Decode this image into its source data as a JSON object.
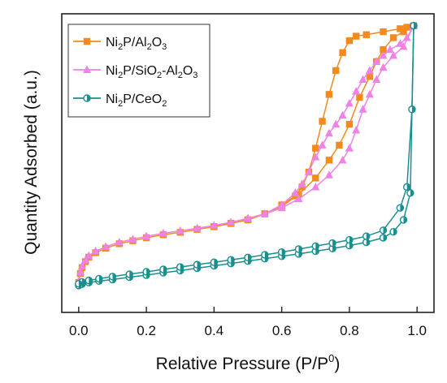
{
  "chart_data": {
    "type": "line",
    "title": "",
    "xlabel": "Relative Pressure (P/P0)",
    "ylabel": "Quantity Adsorbed (a.u.)",
    "xlim": [
      -0.05,
      1.05
    ],
    "ylim": [
      0,
      100
    ],
    "xticks": [
      "0.0",
      "0.2",
      "0.4",
      "0.6",
      "0.8",
      "1.0"
    ],
    "xtick_values": [
      0.0,
      0.2,
      0.4,
      0.6,
      0.8,
      1.0
    ],
    "show_y_ticks": false,
    "grid": false,
    "legend_position": "top-left",
    "series": [
      {
        "name": "Ni2P/Al2O3",
        "legend_parts": [
          [
            "Ni",
            false
          ],
          [
            "2",
            true
          ],
          [
            "P/Al",
            false
          ],
          [
            "2",
            true
          ],
          [
            "O",
            false
          ],
          [
            "3",
            true
          ]
        ],
        "color": "#f28a1d",
        "marker": "square",
        "adsorption": [
          [
            0.0,
            10
          ],
          [
            0.005,
            13
          ],
          [
            0.01,
            15
          ],
          [
            0.02,
            17
          ],
          [
            0.03,
            18.5
          ],
          [
            0.05,
            20
          ],
          [
            0.08,
            21.5
          ],
          [
            0.12,
            23
          ],
          [
            0.16,
            24
          ],
          [
            0.2,
            25
          ],
          [
            0.25,
            26
          ],
          [
            0.3,
            26.8
          ],
          [
            0.35,
            27.8
          ],
          [
            0.4,
            28.7
          ],
          [
            0.45,
            29.8
          ],
          [
            0.5,
            31
          ],
          [
            0.55,
            33
          ],
          [
            0.6,
            35.5
          ],
          [
            0.65,
            39.5
          ],
          [
            0.7,
            45
          ],
          [
            0.74,
            51
          ],
          [
            0.77,
            56
          ],
          [
            0.8,
            63
          ],
          [
            0.83,
            72
          ],
          [
            0.86,
            79
          ],
          [
            0.88,
            84
          ],
          [
            0.9,
            88
          ],
          [
            0.93,
            92
          ],
          [
            0.96,
            94
          ],
          [
            0.99,
            96
          ]
        ],
        "desorption": [
          [
            0.99,
            96
          ],
          [
            0.97,
            95.5
          ],
          [
            0.95,
            95
          ],
          [
            0.9,
            94
          ],
          [
            0.85,
            93
          ],
          [
            0.82,
            92.5
          ],
          [
            0.8,
            91
          ],
          [
            0.78,
            87
          ],
          [
            0.76,
            81
          ],
          [
            0.74,
            73
          ],
          [
            0.72,
            64
          ],
          [
            0.7,
            55
          ],
          [
            0.68,
            47
          ],
          [
            0.66,
            42
          ],
          [
            0.64,
            39
          ],
          [
            0.6,
            36
          ],
          [
            0.55,
            33
          ],
          [
            0.5,
            31
          ],
          [
            0.45,
            29.8
          ],
          [
            0.4,
            28.7
          ]
        ]
      },
      {
        "name": "Ni2P/SiO2-Al2O3",
        "legend_parts": [
          [
            "Ni",
            false
          ],
          [
            "2",
            true
          ],
          [
            "P/SiO",
            false
          ],
          [
            "2",
            true
          ],
          [
            "-Al",
            false
          ],
          [
            "2",
            true
          ],
          [
            "O",
            false
          ],
          [
            "3",
            true
          ]
        ],
        "color": "#ef82e6",
        "marker": "triangle",
        "adsorption": [
          [
            0.0,
            10.5
          ],
          [
            0.005,
            13.5
          ],
          [
            0.01,
            15.5
          ],
          [
            0.02,
            17.5
          ],
          [
            0.03,
            19
          ],
          [
            0.05,
            20.5
          ],
          [
            0.08,
            22
          ],
          [
            0.12,
            23.5
          ],
          [
            0.16,
            24.5
          ],
          [
            0.2,
            25.5
          ],
          [
            0.25,
            26.5
          ],
          [
            0.3,
            27.3
          ],
          [
            0.35,
            28.2
          ],
          [
            0.4,
            29.1
          ],
          [
            0.45,
            30.2
          ],
          [
            0.5,
            31.5
          ],
          [
            0.55,
            33
          ],
          [
            0.6,
            35
          ],
          [
            0.65,
            38
          ],
          [
            0.7,
            42
          ],
          [
            0.74,
            46
          ],
          [
            0.78,
            51
          ],
          [
            0.8,
            55
          ],
          [
            0.82,
            61
          ],
          [
            0.84,
            68
          ],
          [
            0.86,
            73
          ],
          [
            0.88,
            78
          ],
          [
            0.9,
            82
          ],
          [
            0.93,
            86
          ],
          [
            0.96,
            89
          ],
          [
            0.99,
            96
          ]
        ],
        "desorption": [
          [
            0.99,
            96
          ],
          [
            0.97,
            92
          ],
          [
            0.95,
            90
          ],
          [
            0.92,
            88
          ],
          [
            0.9,
            86
          ],
          [
            0.88,
            84
          ],
          [
            0.86,
            81
          ],
          [
            0.84,
            78
          ],
          [
            0.82,
            74
          ],
          [
            0.8,
            70
          ],
          [
            0.78,
            66
          ],
          [
            0.76,
            63
          ],
          [
            0.74,
            60
          ],
          [
            0.72,
            56
          ],
          [
            0.7,
            52
          ],
          [
            0.68,
            47
          ],
          [
            0.66,
            43
          ],
          [
            0.64,
            40
          ],
          [
            0.6,
            36
          ],
          [
            0.55,
            33
          ],
          [
            0.5,
            31.5
          ]
        ]
      },
      {
        "name": "Ni2P/CeO2",
        "legend_parts": [
          [
            "Ni",
            false
          ],
          [
            "2",
            true
          ],
          [
            "P/CeO",
            false
          ],
          [
            "2",
            true
          ]
        ],
        "color": "#1a8f8f",
        "marker": "half-circle",
        "adsorption": [
          [
            0.0,
            9
          ],
          [
            0.01,
            9.5
          ],
          [
            0.03,
            10
          ],
          [
            0.06,
            10.5
          ],
          [
            0.1,
            11
          ],
          [
            0.15,
            11.8
          ],
          [
            0.2,
            12.5
          ],
          [
            0.25,
            13.3
          ],
          [
            0.3,
            14
          ],
          [
            0.35,
            14.8
          ],
          [
            0.4,
            15.6
          ],
          [
            0.45,
            16.4
          ],
          [
            0.5,
            17.2
          ],
          [
            0.55,
            18
          ],
          [
            0.6,
            18.8
          ],
          [
            0.65,
            19.6
          ],
          [
            0.7,
            20.5
          ],
          [
            0.75,
            21.4
          ],
          [
            0.8,
            22.4
          ],
          [
            0.85,
            23.5
          ],
          [
            0.9,
            25
          ],
          [
            0.93,
            27
          ],
          [
            0.96,
            31
          ],
          [
            0.98,
            40
          ],
          [
            0.99,
            96
          ]
        ],
        "desorption": [
          [
            0.99,
            96
          ],
          [
            0.985,
            68
          ],
          [
            0.97,
            42
          ],
          [
            0.95,
            35
          ],
          [
            0.9,
            27.5
          ],
          [
            0.85,
            25.5
          ],
          [
            0.8,
            24.3
          ],
          [
            0.75,
            23.2
          ],
          [
            0.7,
            22.2
          ],
          [
            0.65,
            21.2
          ],
          [
            0.6,
            20.2
          ],
          [
            0.55,
            19.3
          ],
          [
            0.5,
            18.4
          ],
          [
            0.45,
            17.6
          ],
          [
            0.4,
            16.8
          ],
          [
            0.35,
            16
          ],
          [
            0.3,
            15.2
          ],
          [
            0.25,
            14.4
          ],
          [
            0.2,
            13.6
          ],
          [
            0.15,
            12.8
          ],
          [
            0.1,
            12
          ],
          [
            0.06,
            11.3
          ],
          [
            0.03,
            10.7
          ],
          [
            0.01,
            10.2
          ],
          [
            0.0,
            9.6
          ]
        ]
      }
    ]
  }
}
